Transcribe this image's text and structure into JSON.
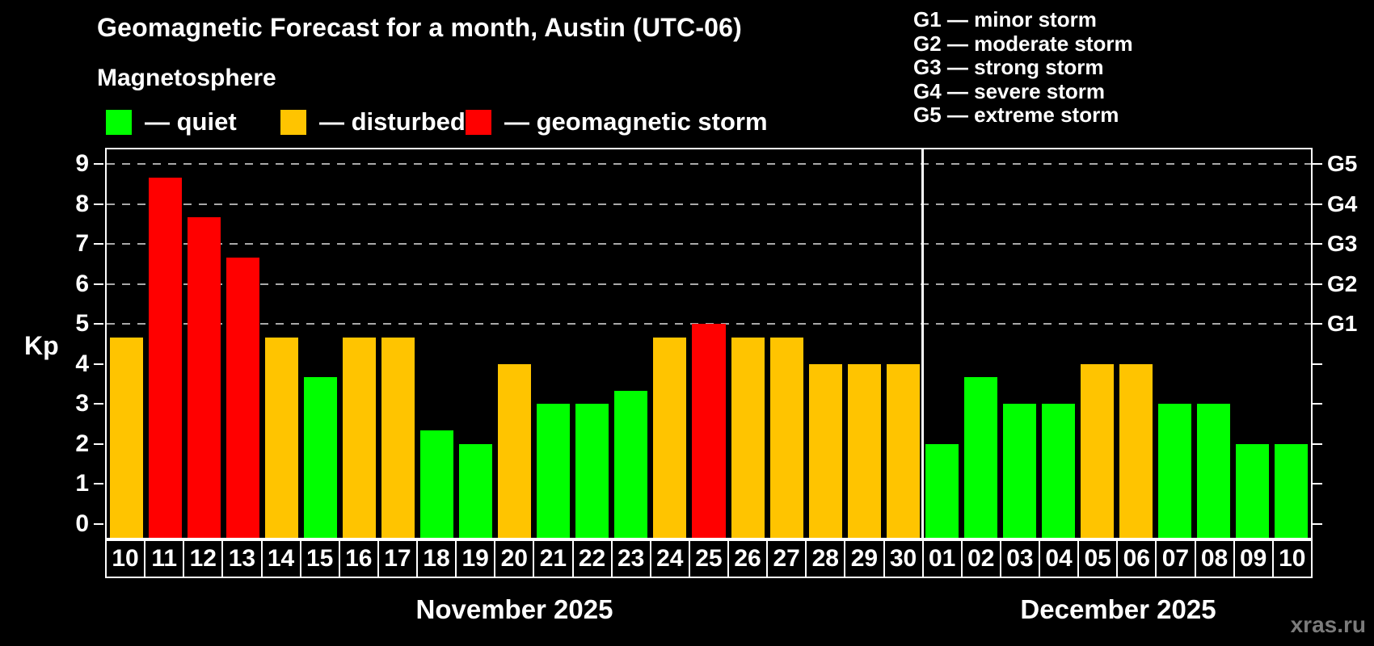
{
  "chart_data": {
    "type": "bar",
    "title": "Geomagnetic Forecast for a month, Austin (UTC-06)",
    "subtitle": "Magnetosphere",
    "ylabel": "Kp",
    "ylim": [
      0,
      9
    ],
    "y_ticks": [
      0,
      1,
      2,
      3,
      4,
      5,
      6,
      7,
      8,
      9
    ],
    "grid": "dashed horizontal lines at Kp 5-9 only",
    "right_axis": [
      {
        "kp": 5,
        "label": "G1"
      },
      {
        "kp": 6,
        "label": "G2"
      },
      {
        "kp": 7,
        "label": "G3"
      },
      {
        "kp": 8,
        "label": "G4"
      },
      {
        "kp": 9,
        "label": "G5"
      }
    ],
    "legend": [
      {
        "state": "quiet",
        "label": "— quiet",
        "color": "#00ff00"
      },
      {
        "state": "disturbed",
        "label": "— disturbed",
        "color": "#ffc400"
      },
      {
        "state": "storm",
        "label": "— geomagnetic storm",
        "color": "#ff0000"
      }
    ],
    "storm_scale": [
      "G1 — minor storm",
      "G2 — moderate storm",
      "G3 — strong storm",
      "G4 — severe storm",
      "G5 — extreme storm"
    ],
    "months": [
      {
        "label": "November 2025",
        "days": [
          {
            "day": "10",
            "kp": 4.67,
            "state": "disturbed"
          },
          {
            "day": "11",
            "kp": 8.67,
            "state": "storm"
          },
          {
            "day": "12",
            "kp": 7.67,
            "state": "storm"
          },
          {
            "day": "13",
            "kp": 6.67,
            "state": "storm"
          },
          {
            "day": "14",
            "kp": 4.67,
            "state": "disturbed"
          },
          {
            "day": "15",
            "kp": 3.67,
            "state": "quiet"
          },
          {
            "day": "16",
            "kp": 4.67,
            "state": "disturbed"
          },
          {
            "day": "17",
            "kp": 4.67,
            "state": "disturbed"
          },
          {
            "day": "18",
            "kp": 2.33,
            "state": "quiet"
          },
          {
            "day": "19",
            "kp": 2.0,
            "state": "quiet"
          },
          {
            "day": "20",
            "kp": 4.0,
            "state": "disturbed"
          },
          {
            "day": "21",
            "kp": 3.0,
            "state": "quiet"
          },
          {
            "day": "22",
            "kp": 3.0,
            "state": "quiet"
          },
          {
            "day": "23",
            "kp": 3.33,
            "state": "quiet"
          },
          {
            "day": "24",
            "kp": 4.67,
            "state": "disturbed"
          },
          {
            "day": "25",
            "kp": 5.0,
            "state": "storm"
          },
          {
            "day": "26",
            "kp": 4.67,
            "state": "disturbed"
          },
          {
            "day": "27",
            "kp": 4.67,
            "state": "disturbed"
          },
          {
            "day": "28",
            "kp": 4.0,
            "state": "disturbed"
          },
          {
            "day": "29",
            "kp": 4.0,
            "state": "disturbed"
          },
          {
            "day": "30",
            "kp": 4.0,
            "state": "disturbed"
          }
        ]
      },
      {
        "label": "December 2025",
        "days": [
          {
            "day": "01",
            "kp": 2.0,
            "state": "quiet"
          },
          {
            "day": "02",
            "kp": 3.67,
            "state": "quiet"
          },
          {
            "day": "03",
            "kp": 3.0,
            "state": "quiet"
          },
          {
            "day": "04",
            "kp": 3.0,
            "state": "quiet"
          },
          {
            "day": "05",
            "kp": 4.0,
            "state": "disturbed"
          },
          {
            "day": "06",
            "kp": 4.0,
            "state": "disturbed"
          },
          {
            "day": "07",
            "kp": 3.0,
            "state": "quiet"
          },
          {
            "day": "08",
            "kp": 3.0,
            "state": "quiet"
          },
          {
            "day": "09",
            "kp": 2.0,
            "state": "quiet"
          },
          {
            "day": "10",
            "kp": 2.0,
            "state": "quiet"
          }
        ]
      }
    ],
    "watermark": "xras.ru",
    "colors": {
      "background": "#000000",
      "text": "#ffffff",
      "gridline": "#a9a9a9",
      "watermark": "#7b7b7b"
    }
  }
}
